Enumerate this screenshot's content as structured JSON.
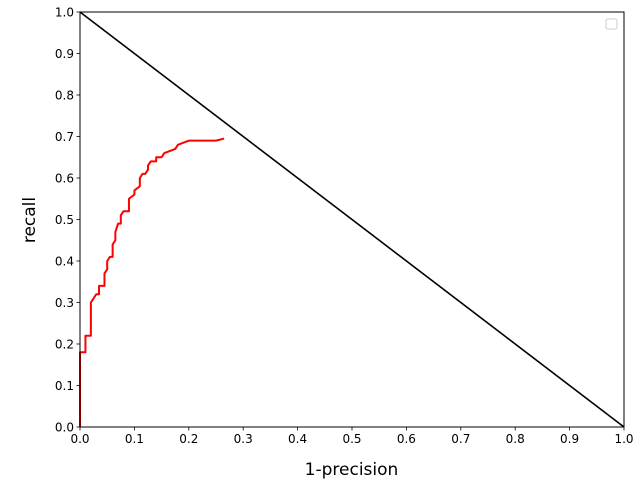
{
  "chart_data": {
    "type": "line",
    "xlabel": "1-precision",
    "ylabel": "recall",
    "xlim": [
      0.0,
      1.0
    ],
    "ylim": [
      0.0,
      1.0
    ],
    "xticks": [
      "0.0",
      "0.1",
      "0.2",
      "0.3",
      "0.4",
      "0.5",
      "0.6",
      "0.7",
      "0.8",
      "0.9",
      "1.0"
    ],
    "yticks": [
      "0.0",
      "0.1",
      "0.2",
      "0.3",
      "0.4",
      "0.5",
      "0.6",
      "0.7",
      "0.8",
      "0.9",
      "1.0"
    ],
    "grid": true,
    "legend": "top-right (empty)",
    "series": [
      {
        "color": "#ff0000",
        "x": [
          0.0,
          0.0,
          0.0,
          0.01,
          0.01,
          0.02,
          0.02,
          0.02,
          0.025,
          0.03,
          0.035,
          0.035,
          0.045,
          0.045,
          0.05,
          0.05,
          0.055,
          0.06,
          0.06,
          0.065,
          0.065,
          0.07,
          0.075,
          0.075,
          0.08,
          0.09,
          0.09,
          0.1,
          0.1,
          0.11,
          0.11,
          0.115,
          0.12,
          0.125,
          0.125,
          0.13,
          0.135,
          0.14,
          0.14,
          0.15,
          0.155,
          0.165,
          0.175,
          0.18,
          0.19,
          0.2,
          0.22,
          0.23,
          0.25,
          0.265
        ],
        "y": [
          0.0,
          0.1,
          0.18,
          0.18,
          0.22,
          0.22,
          0.28,
          0.3,
          0.31,
          0.32,
          0.32,
          0.34,
          0.34,
          0.37,
          0.38,
          0.4,
          0.41,
          0.41,
          0.44,
          0.45,
          0.47,
          0.49,
          0.49,
          0.51,
          0.52,
          0.52,
          0.55,
          0.56,
          0.57,
          0.58,
          0.6,
          0.61,
          0.61,
          0.62,
          0.63,
          0.64,
          0.64,
          0.64,
          0.65,
          0.65,
          0.66,
          0.665,
          0.67,
          0.68,
          0.685,
          0.69,
          0.69,
          0.69,
          0.69,
          0.695
        ]
      },
      {
        "color": "#000000",
        "x": [
          0.0,
          1.0
        ],
        "y": [
          1.0,
          0.0
        ]
      }
    ]
  }
}
